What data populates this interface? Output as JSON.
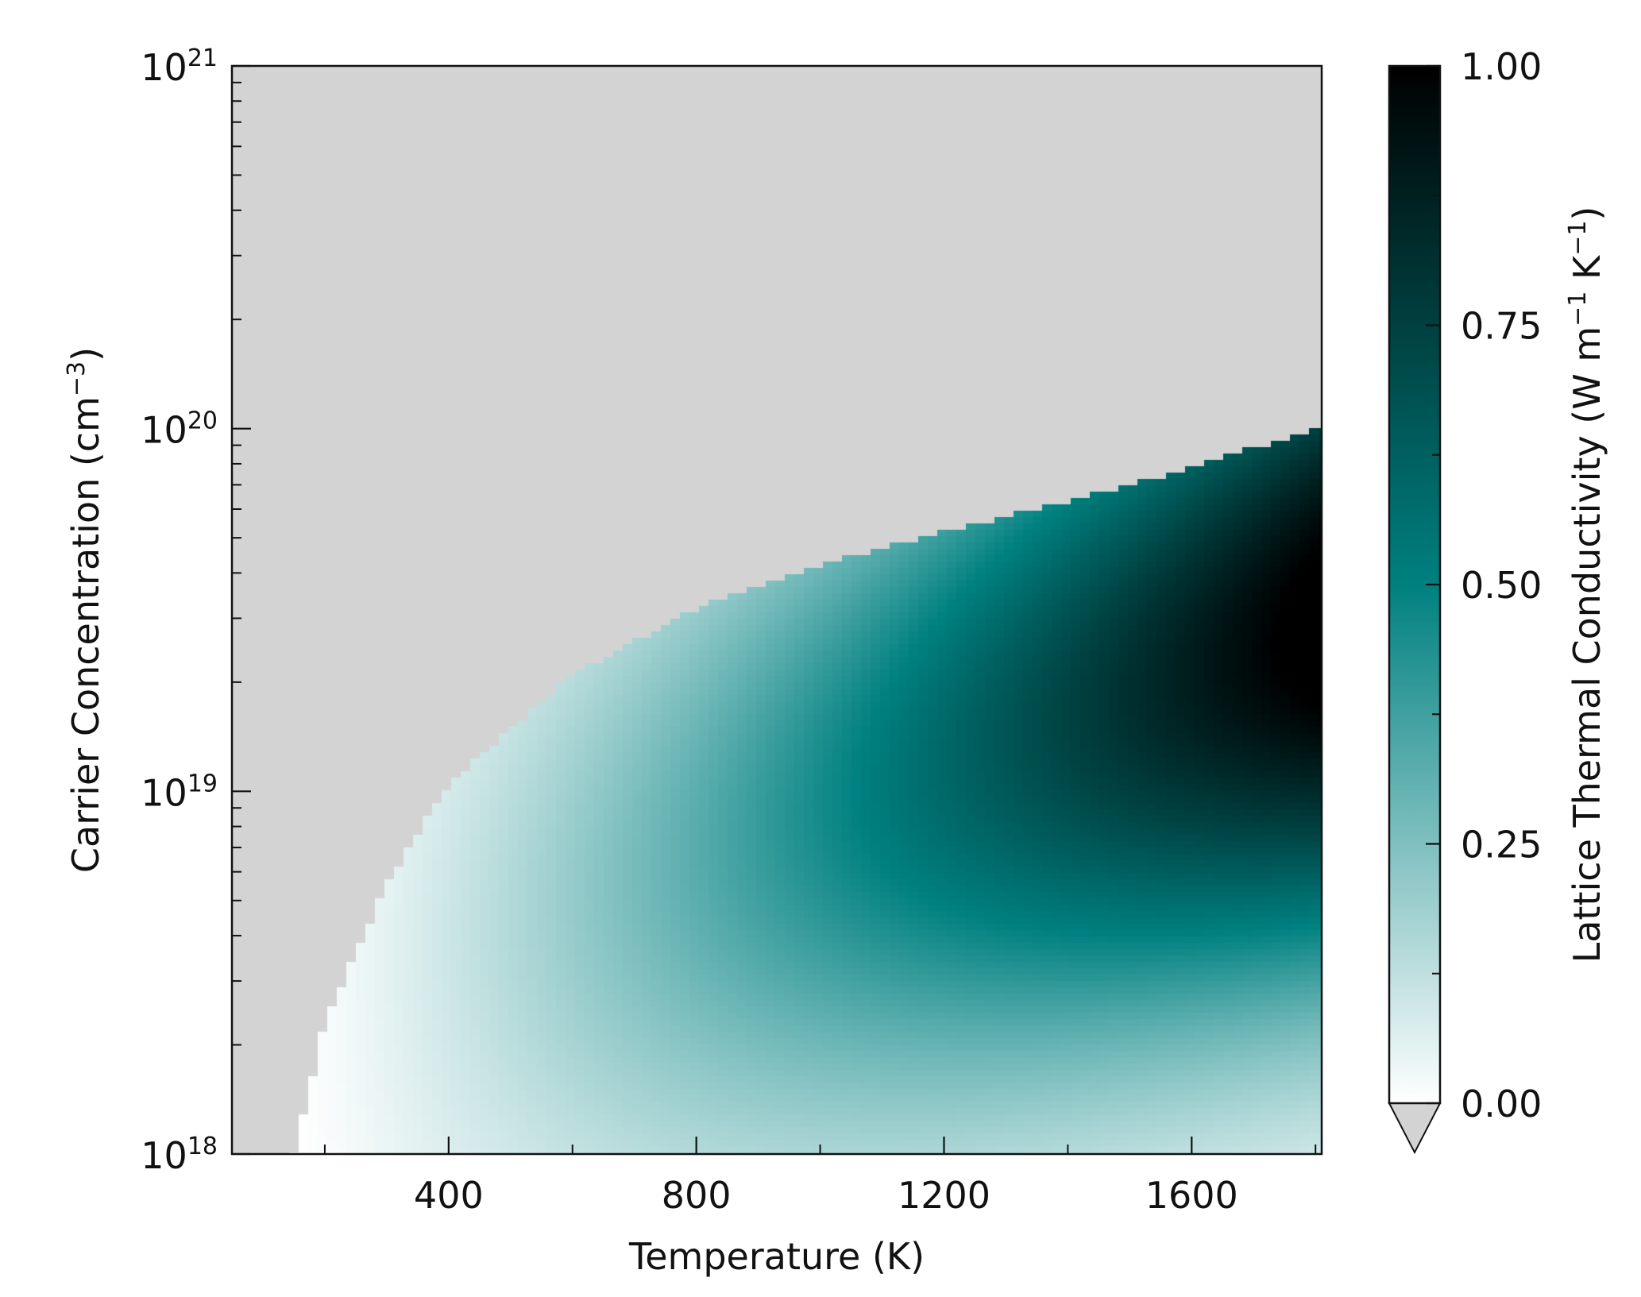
{
  "chart_data": {
    "type": "heatmap",
    "title": "",
    "xlabel": "Temperature (K)",
    "ylabel": "Carrier Concentration (cm",
    "ylabel_sup": "−3",
    "ylabel_end": ")",
    "x_range": [
      50,
      1810
    ],
    "y_range": [
      1e+18,
      1e+21
    ],
    "y_scale": "log",
    "x_ticks": [
      400,
      800,
      1200,
      1600
    ],
    "x_tick_labels": [
      "400",
      "800",
      "1200",
      "1600"
    ],
    "x_minor_ticks": [
      200,
      600,
      1000,
      1400,
      1800
    ],
    "y_ticks": [
      {
        "base": "10",
        "exp": "18",
        "value": 1e+18
      },
      {
        "base": "10",
        "exp": "19",
        "value": 1e+19
      },
      {
        "base": "10",
        "exp": "20",
        "value": 1e+20
      },
      {
        "base": "10",
        "exp": "21",
        "value": 1e+21
      }
    ],
    "masked_color": "#d3d3d3",
    "boundary": {
      "description": "cells above this carrier concentration at each temperature are masked (no data)",
      "points": [
        [
          150,
          1e+18
        ],
        [
          200,
          2.3e+18
        ],
        [
          300,
          5.5e+18
        ],
        [
          400,
          1.05e+19
        ],
        [
          600,
          2.1e+19
        ],
        [
          800,
          3.2e+19
        ],
        [
          1000,
          4.2e+19
        ],
        [
          1200,
          5.2e+19
        ],
        [
          1400,
          6.3e+19
        ],
        [
          1600,
          7.8e+19
        ],
        [
          1800,
          1e+20
        ]
      ]
    },
    "colorbar": {
      "label": "Lattice Thermal Conductivity (W m",
      "label_sup1": "−1",
      "label_mid": " K",
      "label_sup2": "−1",
      "label_end": ")",
      "range": [
        0.0,
        1.0
      ],
      "ticks": [
        0.0,
        0.25,
        0.5,
        0.75,
        1.0
      ],
      "tick_labels": [
        "0.00",
        "0.25",
        "0.50",
        "0.75",
        "1.00"
      ],
      "colors": [
        "#ffffff",
        "#008080",
        "#000000"
      ],
      "extend": "min",
      "under_color": "#d3d3d3"
    }
  }
}
